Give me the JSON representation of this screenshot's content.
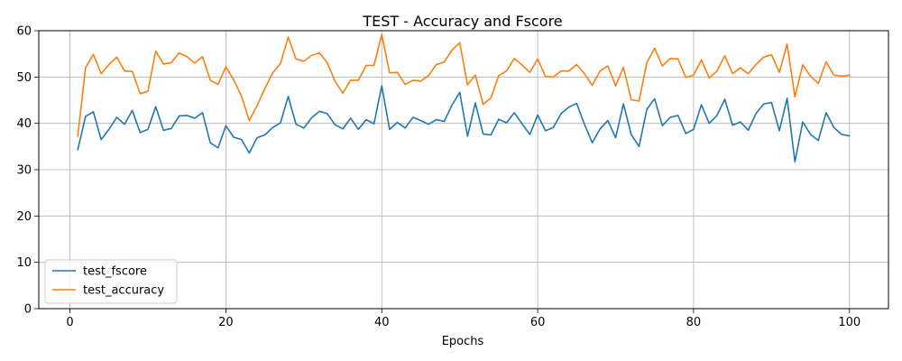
{
  "chart_data": {
    "type": "line",
    "title": "TEST - Accuracy and Fscore",
    "xlabel": "Epochs",
    "ylabel": "",
    "xlim": [
      -4,
      105
    ],
    "ylim": [
      0,
      60
    ],
    "xticks": [
      0,
      20,
      40,
      60,
      80,
      100
    ],
    "yticks": [
      0,
      10,
      20,
      30,
      40,
      50,
      60
    ],
    "grid": true,
    "legend_position": "lower-left",
    "x": [
      1,
      2,
      3,
      4,
      5,
      6,
      7,
      8,
      9,
      10,
      11,
      12,
      13,
      14,
      15,
      16,
      17,
      18,
      19,
      20,
      21,
      22,
      23,
      24,
      25,
      26,
      27,
      28,
      29,
      30,
      31,
      32,
      33,
      34,
      35,
      36,
      37,
      38,
      39,
      40,
      41,
      42,
      43,
      44,
      45,
      46,
      47,
      48,
      49,
      50,
      51,
      52,
      53,
      54,
      55,
      56,
      57,
      58,
      59,
      60,
      61,
      62,
      63,
      64,
      65,
      66,
      67,
      68,
      69,
      70,
      71,
      72,
      73,
      74,
      75,
      76,
      77,
      78,
      79,
      80,
      81,
      82,
      83,
      84,
      85,
      86,
      87,
      88,
      89,
      90,
      91,
      92,
      93,
      94,
      95,
      96,
      97,
      98,
      99,
      100
    ],
    "series": [
      {
        "name": "test_fscore",
        "color": "#1f77b4",
        "values": [
          34.3,
          41.5,
          42.5,
          36.5,
          38.7,
          41.3,
          39.8,
          42.8,
          38.0,
          38.7,
          43.6,
          38.5,
          38.9,
          41.6,
          41.7,
          41.1,
          42.3,
          35.8,
          34.7,
          39.5,
          37.0,
          36.5,
          33.6,
          36.9,
          37.5,
          39.1,
          40.1,
          45.8,
          39.8,
          39.0,
          41.2,
          42.6,
          42.1,
          39.7,
          38.8,
          41.1,
          38.7,
          40.8,
          39.9,
          48.1,
          38.7,
          40.2,
          39.0,
          41.3,
          40.6,
          39.8,
          40.8,
          40.4,
          43.9,
          46.7,
          37.2,
          44.4,
          37.7,
          37.5,
          40.9,
          40.1,
          42.3,
          39.9,
          37.6,
          41.8,
          38.4,
          39.1,
          42.1,
          43.5,
          44.3,
          39.8,
          35.8,
          38.8,
          40.6,
          36.9,
          44.2,
          37.6,
          35.0,
          43.0,
          45.3,
          39.5,
          41.3,
          41.7,
          37.8,
          38.7,
          44.0,
          40.0,
          41.7,
          45.2,
          39.6,
          40.3,
          38.5,
          42.1,
          44.2,
          44.5,
          38.4,
          45.4,
          31.7,
          40.3,
          37.6,
          36.3,
          42.3,
          39.1,
          37.6,
          37.3
        ]
      },
      {
        "name": "test_accuracy",
        "color": "#ff7f0e",
        "values": [
          37.2,
          52.0,
          54.9,
          50.7,
          52.7,
          54.3,
          51.3,
          51.2,
          46.4,
          46.9,
          55.6,
          52.8,
          53.1,
          55.2,
          54.4,
          53.0,
          54.4,
          49.3,
          48.4,
          52.2,
          49.4,
          45.9,
          40.6,
          43.8,
          47.5,
          50.9,
          52.9,
          58.6,
          53.9,
          53.4,
          54.7,
          55.2,
          53.1,
          49.1,
          46.5,
          49.3,
          49.3,
          52.5,
          52.5,
          59.2,
          50.9,
          51.0,
          48.4,
          49.3,
          49.1,
          50.3,
          52.7,
          53.2,
          55.8,
          57.4,
          48.3,
          50.4,
          44.1,
          45.5,
          50.3,
          51.3,
          54.0,
          52.6,
          51.0,
          53.9,
          50.1,
          50.0,
          51.3,
          51.3,
          52.7,
          50.7,
          48.2,
          51.3,
          52.4,
          48.1,
          52.1,
          45.1,
          44.8,
          53.1,
          56.2,
          52.4,
          54.0,
          53.9,
          49.9,
          50.4,
          53.7,
          49.8,
          51.3,
          54.6,
          50.7,
          52.0,
          50.7,
          52.7,
          54.3,
          54.8,
          51.0,
          57.1,
          45.7,
          52.6,
          50.2,
          48.6,
          53.3,
          50.4,
          50.2,
          50.4
        ]
      }
    ]
  }
}
